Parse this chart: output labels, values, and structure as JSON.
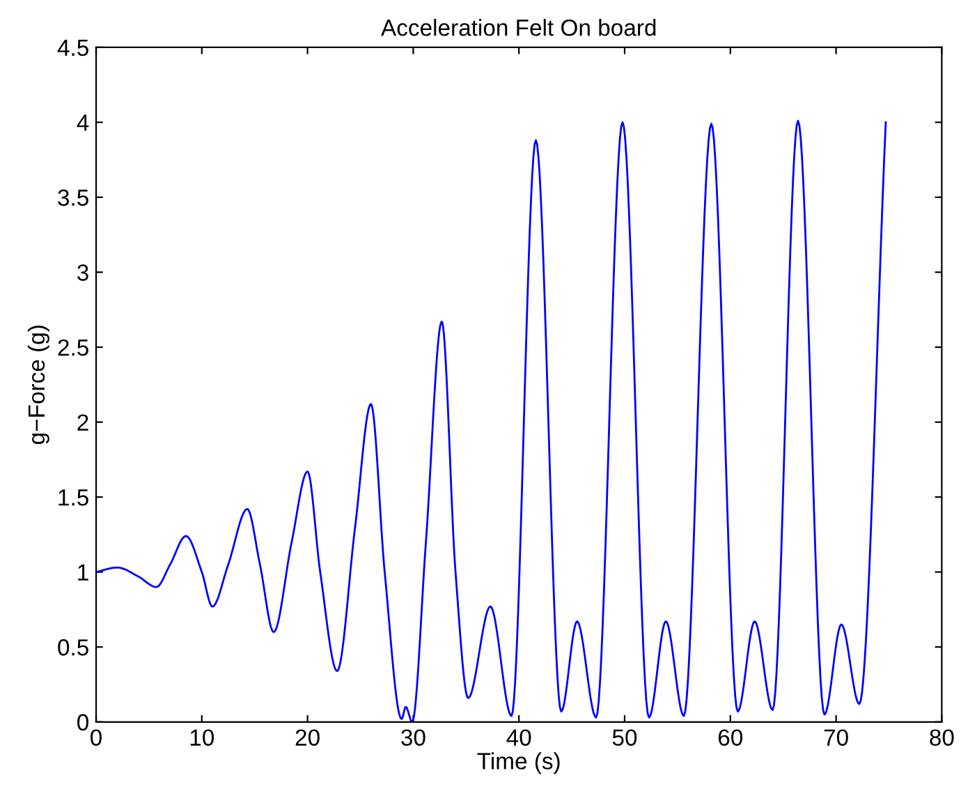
{
  "chart_data": {
    "type": "line",
    "title": "Acceleration Felt On board",
    "xlabel": "Time (s)",
    "ylabel": "g−Force (g)",
    "x": [
      0,
      2,
      4,
      5.7,
      7,
      8.5,
      10,
      11,
      12.5,
      14.3,
      15.5,
      16.8,
      18.5,
      20,
      21.2,
      22.8,
      24.5,
      26,
      27.3,
      28.9,
      29.3,
      29.9,
      31.2,
      32.7,
      34,
      35.2,
      37.3,
      39.3,
      41.6,
      44.0,
      45.5,
      47.3,
      49.8,
      52.3,
      53.9,
      55.6,
      58.2,
      60.7,
      62.3,
      64.0,
      66.4,
      68.9,
      70.5,
      72.2,
      74.7
    ],
    "series": [
      {
        "color": "#0000ff",
        "values": [
          1.0,
          1.03,
          0.97,
          0.9,
          1.05,
          1.24,
          1.0,
          0.77,
          1.05,
          1.42,
          1.05,
          0.6,
          1.2,
          1.67,
          1.0,
          0.34,
          1.3,
          2.12,
          1.0,
          0.02,
          0.1,
          0.0,
          1.2,
          2.67,
          1.0,
          0.16,
          0.77,
          0.04,
          3.88,
          0.07,
          0.67,
          0.03,
          4.0,
          0.03,
          0.67,
          0.04,
          3.99,
          0.07,
          0.67,
          0.08,
          4.01,
          0.05,
          0.65,
          0.12,
          4.0
        ]
      }
    ],
    "xlim": [
      0,
      80
    ],
    "ylim": [
      0,
      4.5
    ],
    "xticks": [
      0,
      10,
      20,
      30,
      40,
      50,
      60,
      70,
      80
    ],
    "yticks": [
      0,
      0.5,
      1,
      1.5,
      2,
      2.5,
      3,
      3.5,
      4,
      4.5
    ],
    "grid": false,
    "legend": false,
    "marker": "none",
    "line_style": "solid"
  }
}
